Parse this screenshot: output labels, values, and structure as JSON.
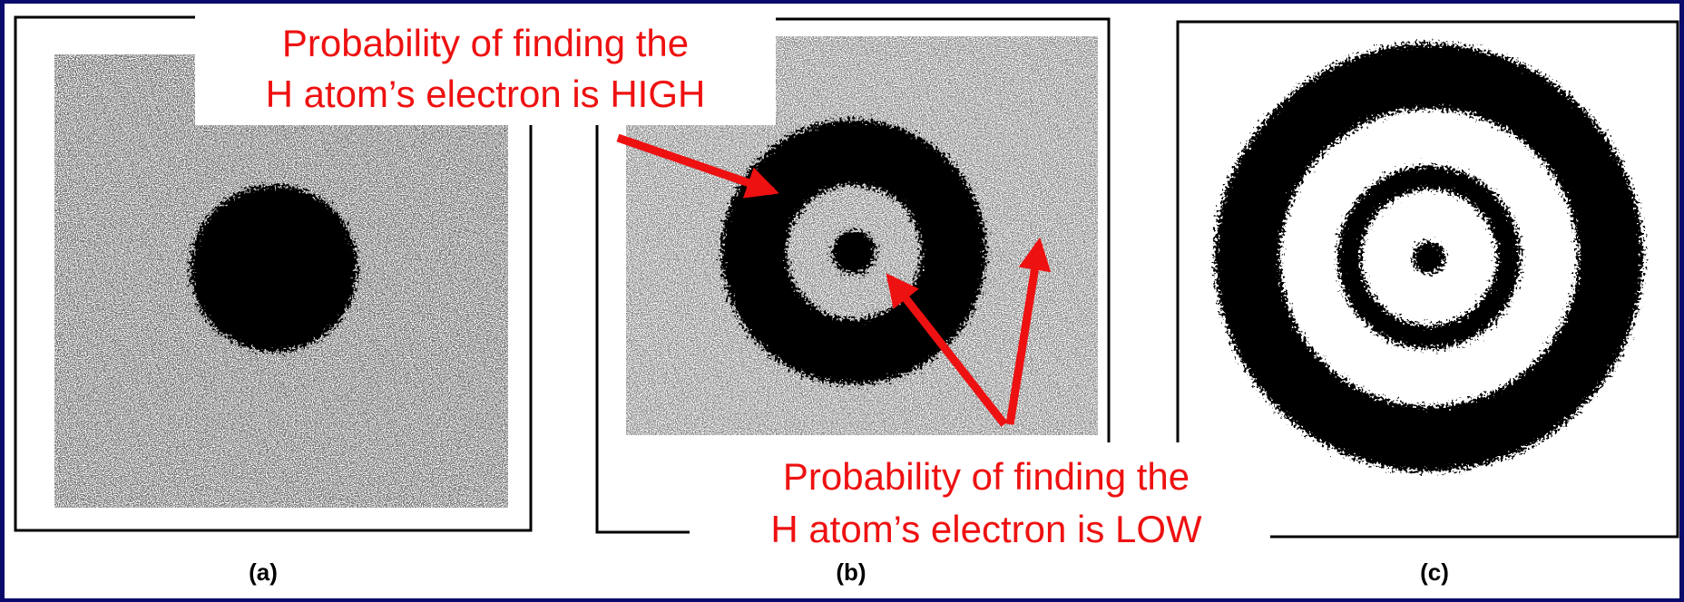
{
  "panels": [
    {
      "label": "(a)"
    },
    {
      "label": "(b)"
    },
    {
      "label": "(c)"
    }
  ],
  "annotations": {
    "high": {
      "lines": [
        "Probability of finding the",
        "H atom’s electron is HIGH"
      ]
    },
    "low": {
      "lines": [
        "Probability of finding the",
        "H atom’s electron is LOW"
      ]
    }
  }
}
